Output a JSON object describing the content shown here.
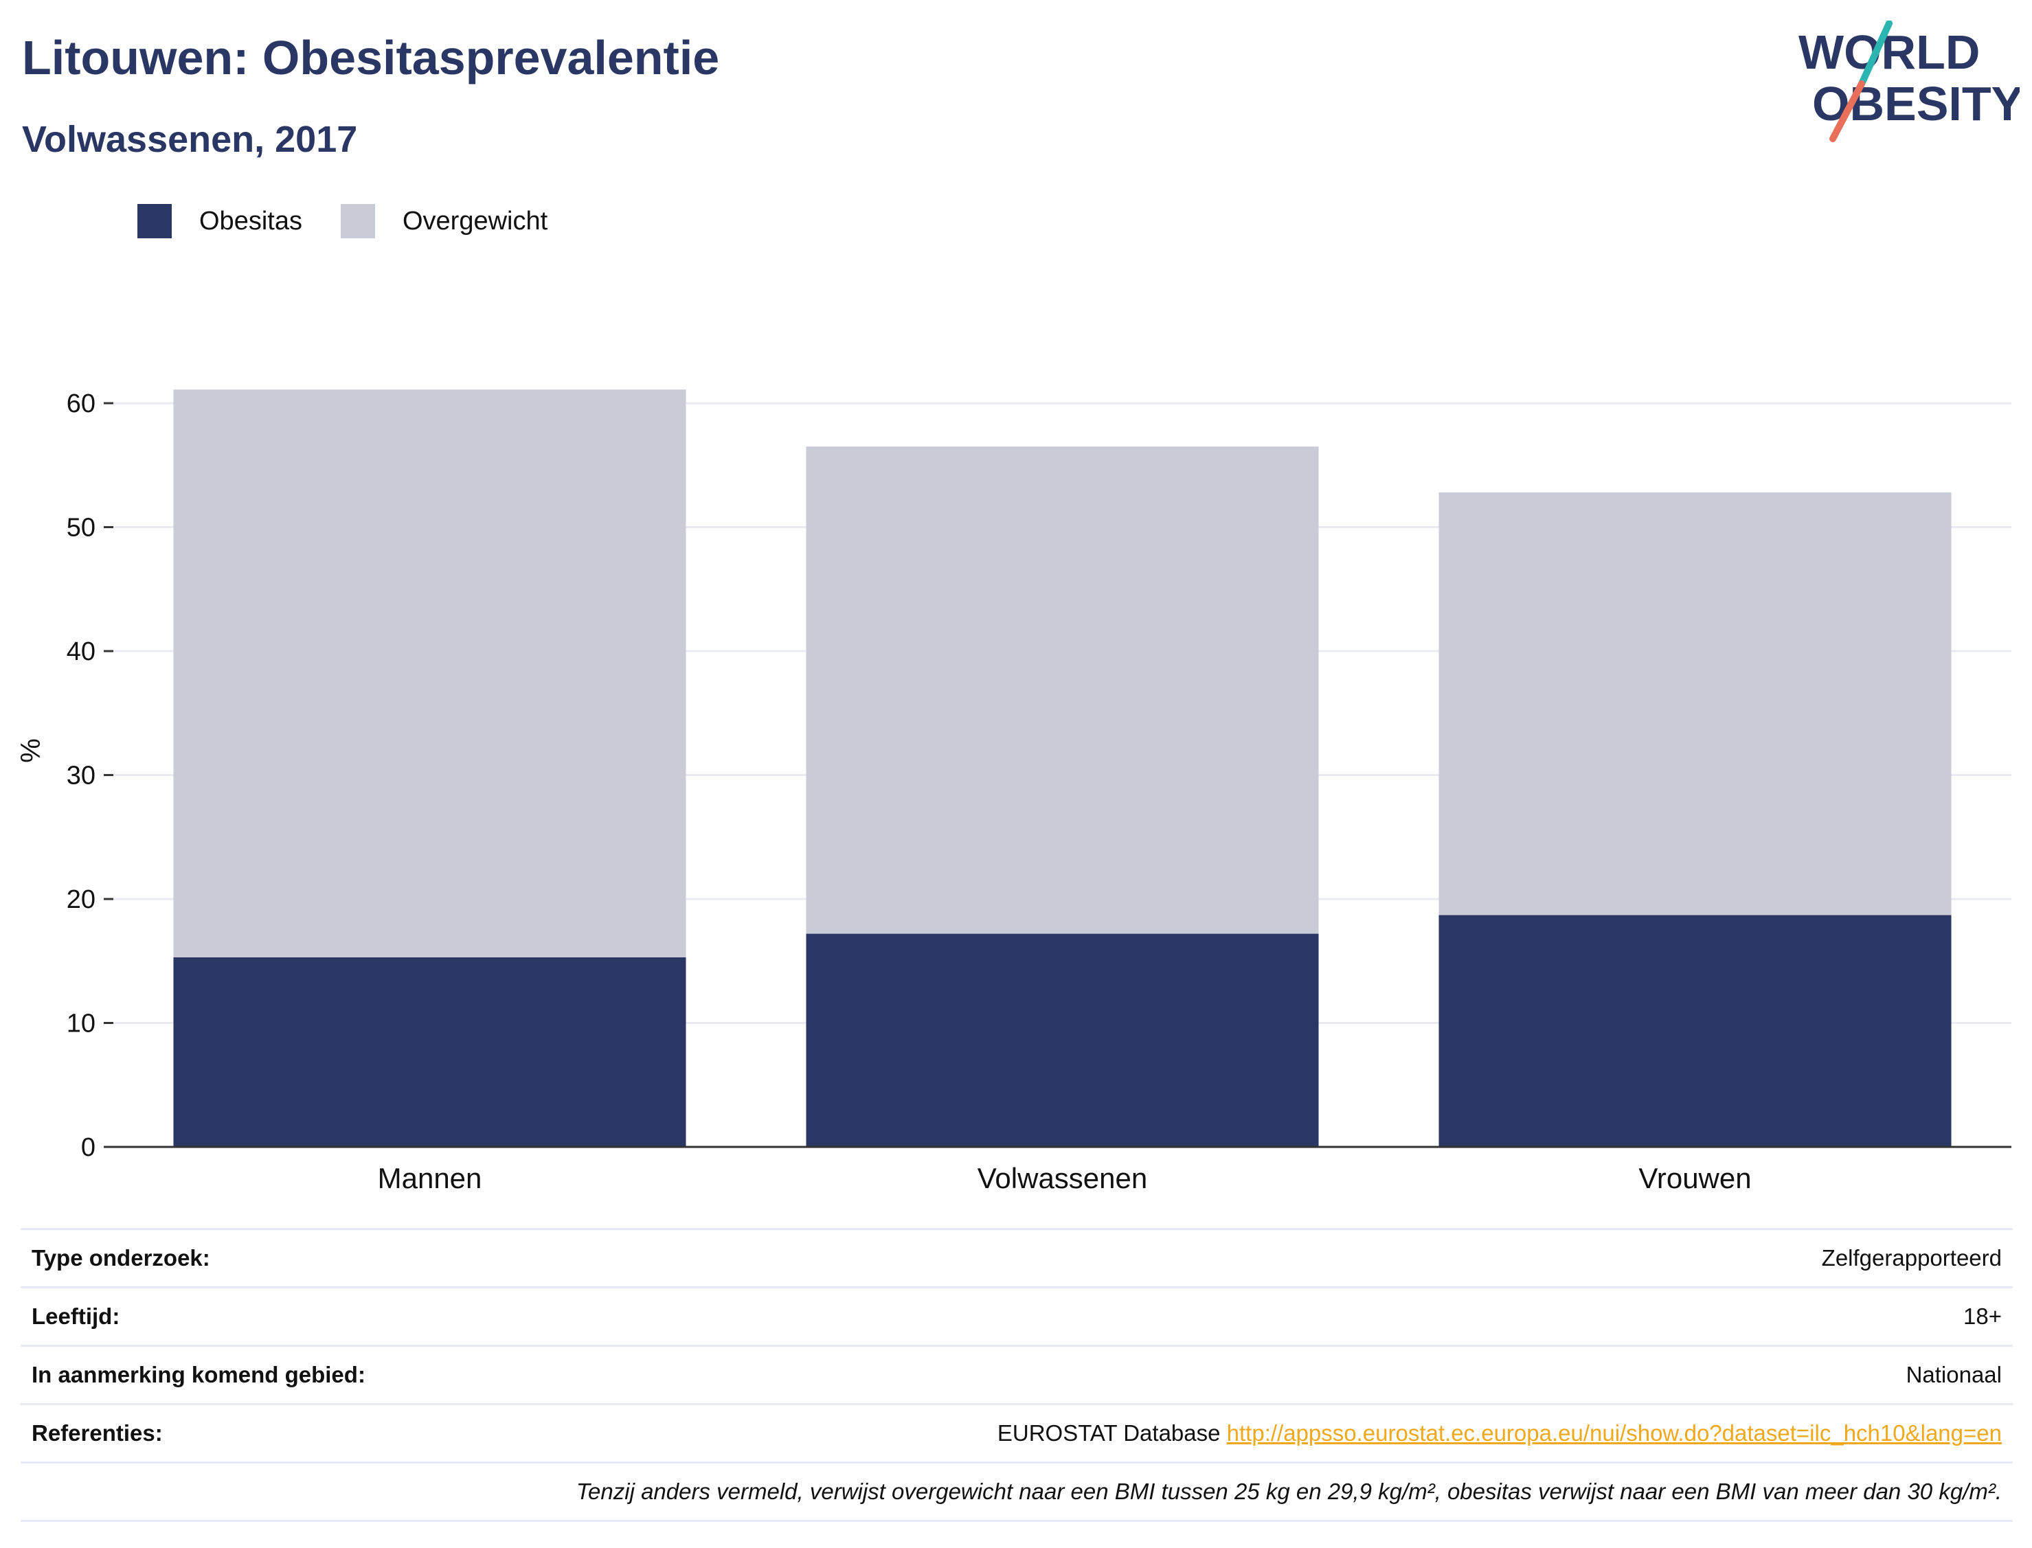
{
  "header": {
    "title": "Litouwen: Obesitasprevalentie",
    "subtitle": "Volwassenen, 2017"
  },
  "logo": {
    "line1": "WORLD",
    "line2": "OBESITY",
    "stripe_teal": "#2bb5b0",
    "stripe_coral": "#e8705a"
  },
  "chart_data": {
    "type": "bar",
    "stacked": true,
    "categories": [
      "Mannen",
      "Volwassenen",
      "Vrouwen"
    ],
    "series": [
      {
        "name": "Obesitas",
        "color": "#2a3664",
        "values": [
          15.3,
          17.2,
          18.7
        ]
      },
      {
        "name": "Overgewicht",
        "color": "#c9cbd7",
        "values": [
          45.8,
          39.3,
          34.1
        ]
      }
    ],
    "ylabel": "%",
    "ylim": [
      0,
      61.5
    ],
    "yticks": [
      0,
      10,
      20,
      30,
      40,
      50,
      60
    ],
    "grid": true,
    "legend": "top-left"
  },
  "info": {
    "survey_type_label": "Type onderzoek:",
    "survey_type_value": "Zelfgerapporteerd",
    "age_label": "Leeftijd:",
    "age_value": "18+",
    "area_label": "In aanmerking komend gebied:",
    "area_value": "Nationaal",
    "references_label": "Referenties:",
    "references_source": "EUROSTAT Database",
    "references_link": "http://appsso.eurostat.ec.europa.eu/nui/show.do?dataset=ilc_hch10&lang=en",
    "note": "Tenzij anders vermeld, verwijst overgewicht naar een BMI tussen 25 kg en 29,9 kg/m², obesitas verwijst naar een BMI van meer dan 30 kg/m²."
  }
}
